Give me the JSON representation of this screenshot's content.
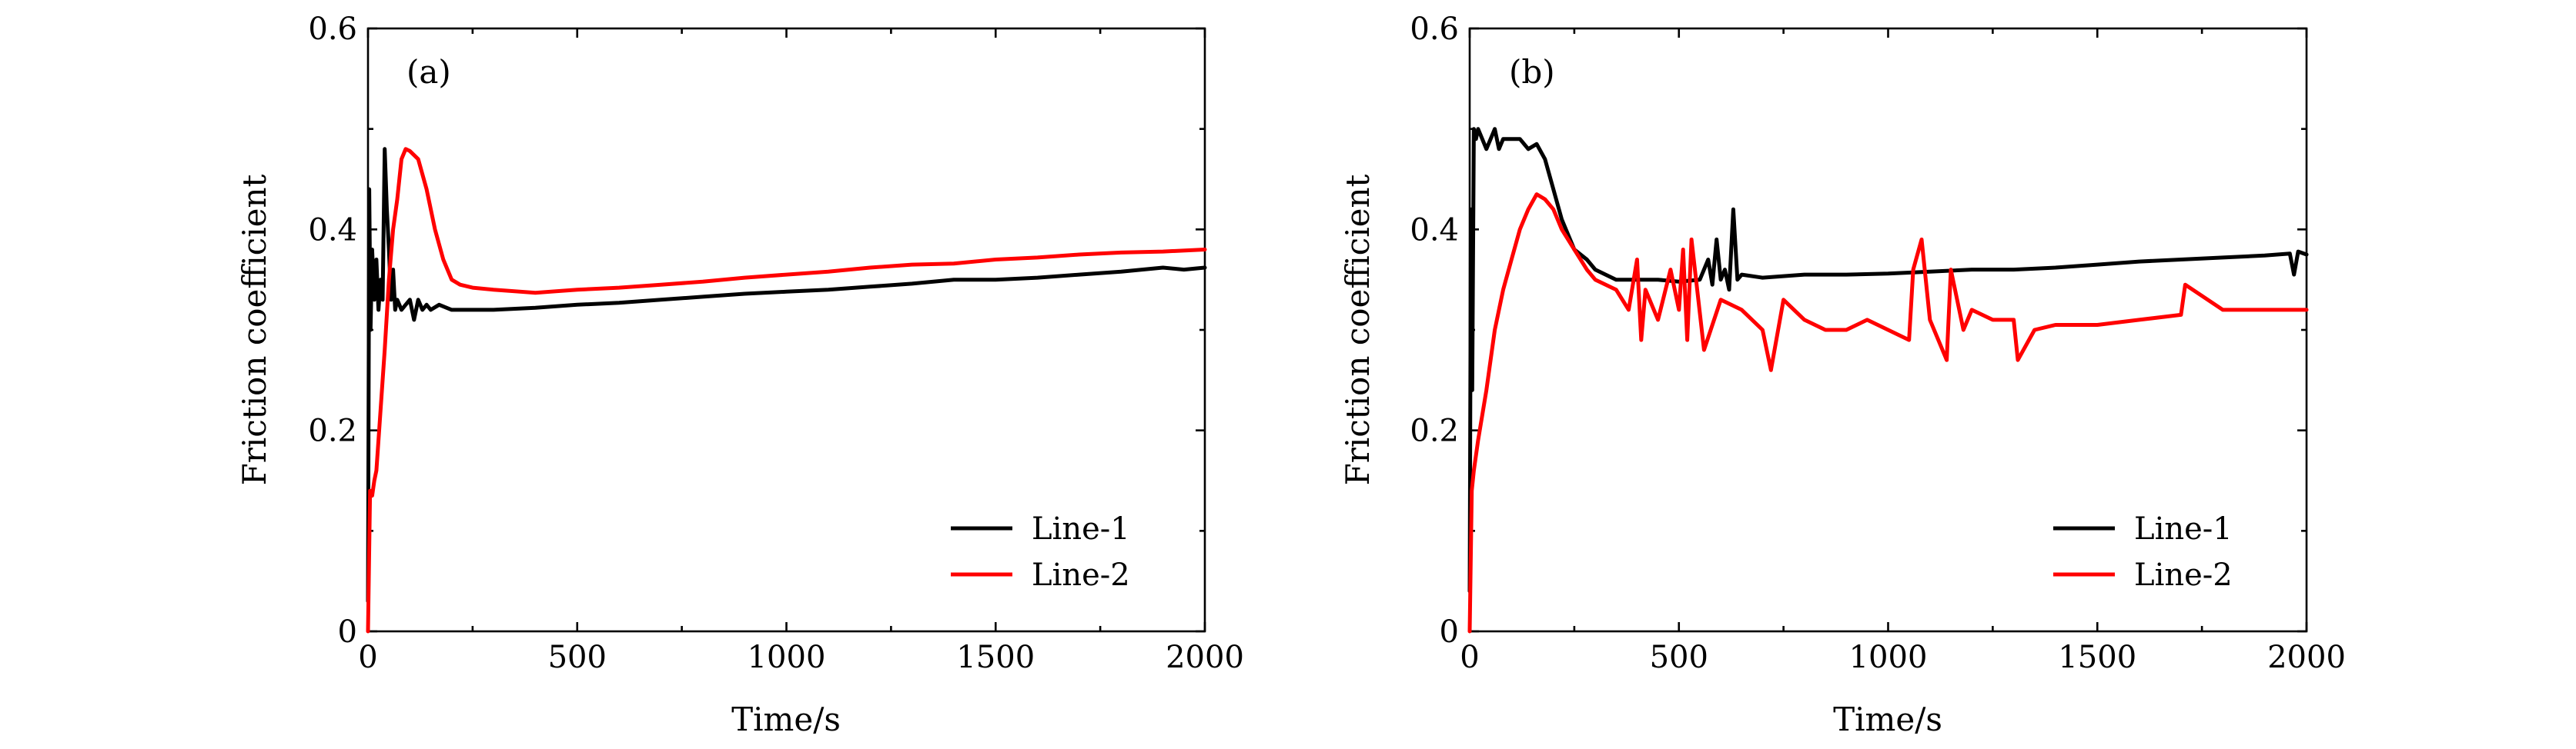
{
  "chart_data": [
    {
      "type": "line",
      "panel_label": "(a)",
      "xlabel": "Time/s",
      "ylabel": "Friction coefficient",
      "xlim": [
        0,
        2000
      ],
      "ylim": [
        0,
        0.6
      ],
      "xticks": [
        0,
        500,
        1000,
        1500,
        2000
      ],
      "yticks": [
        0,
        0.2,
        0.4,
        0.6
      ],
      "xtick_labels": [
        "0",
        "500",
        "1000",
        "1500",
        "2000"
      ],
      "ytick_labels": [
        "0",
        "0.2",
        "0.4",
        "0.6"
      ],
      "legend_position": "bottom-right",
      "grid": false,
      "series": [
        {
          "name": "Line-1",
          "color": "#000000",
          "x": [
            0,
            3,
            6,
            10,
            15,
            20,
            25,
            30,
            35,
            40,
            45,
            50,
            55,
            60,
            65,
            70,
            80,
            90,
            100,
            110,
            120,
            130,
            140,
            150,
            170,
            200,
            250,
            300,
            400,
            500,
            600,
            700,
            800,
            900,
            1000,
            1100,
            1200,
            1300,
            1400,
            1500,
            1600,
            1700,
            1800,
            1900,
            1950,
            2000
          ],
          "y": [
            0.03,
            0.44,
            0.3,
            0.38,
            0.33,
            0.37,
            0.32,
            0.35,
            0.33,
            0.48,
            0.42,
            0.38,
            0.33,
            0.36,
            0.32,
            0.33,
            0.32,
            0.325,
            0.33,
            0.31,
            0.33,
            0.32,
            0.325,
            0.32,
            0.325,
            0.32,
            0.32,
            0.32,
            0.322,
            0.325,
            0.327,
            0.33,
            0.333,
            0.336,
            0.338,
            0.34,
            0.343,
            0.346,
            0.35,
            0.35,
            0.352,
            0.355,
            0.358,
            0.362,
            0.36,
            0.362
          ]
        },
        {
          "name": "Line-2",
          "color": "#ff0000",
          "x": [
            0,
            5,
            10,
            15,
            20,
            30,
            40,
            50,
            60,
            70,
            80,
            90,
            100,
            120,
            140,
            160,
            180,
            200,
            220,
            250,
            300,
            400,
            500,
            600,
            700,
            800,
            900,
            1000,
            1100,
            1200,
            1300,
            1400,
            1500,
            1600,
            1700,
            1800,
            1900,
            2000
          ],
          "y": [
            0.0,
            0.14,
            0.135,
            0.15,
            0.16,
            0.22,
            0.28,
            0.35,
            0.4,
            0.43,
            0.47,
            0.48,
            0.478,
            0.47,
            0.44,
            0.4,
            0.37,
            0.35,
            0.345,
            0.342,
            0.34,
            0.337,
            0.34,
            0.342,
            0.345,
            0.348,
            0.352,
            0.355,
            0.358,
            0.362,
            0.365,
            0.366,
            0.37,
            0.372,
            0.375,
            0.377,
            0.378,
            0.38
          ]
        }
      ]
    },
    {
      "type": "line",
      "panel_label": "(b)",
      "xlabel": "Time/s",
      "ylabel": "Friction coefficient",
      "xlim": [
        0,
        2000
      ],
      "ylim": [
        0,
        0.6
      ],
      "xticks": [
        0,
        500,
        1000,
        1500,
        2000
      ],
      "yticks": [
        0,
        0.2,
        0.4,
        0.6
      ],
      "xtick_labels": [
        "0",
        "500",
        "1000",
        "1500",
        "2000"
      ],
      "ytick_labels": [
        "0",
        "0.2",
        "0.4",
        "0.6"
      ],
      "legend_position": "bottom-right",
      "grid": false,
      "series": [
        {
          "name": "Line-1",
          "color": "#000000",
          "x": [
            0,
            3,
            6,
            10,
            15,
            20,
            30,
            40,
            50,
            60,
            70,
            80,
            100,
            120,
            140,
            160,
            180,
            200,
            220,
            250,
            280,
            300,
            350,
            400,
            450,
            500,
            550,
            570,
            580,
            590,
            600,
            610,
            620,
            630,
            640,
            650,
            700,
            800,
            900,
            1000,
            1100,
            1200,
            1300,
            1400,
            1500,
            1600,
            1700,
            1800,
            1900,
            1960,
            1970,
            1980,
            2000
          ],
          "y": [
            0.04,
            0.42,
            0.24,
            0.5,
            0.49,
            0.5,
            0.49,
            0.48,
            0.49,
            0.5,
            0.48,
            0.49,
            0.49,
            0.49,
            0.48,
            0.485,
            0.47,
            0.44,
            0.41,
            0.38,
            0.37,
            0.36,
            0.35,
            0.35,
            0.35,
            0.348,
            0.35,
            0.37,
            0.345,
            0.39,
            0.35,
            0.36,
            0.34,
            0.42,
            0.35,
            0.355,
            0.352,
            0.355,
            0.355,
            0.356,
            0.358,
            0.36,
            0.36,
            0.362,
            0.365,
            0.368,
            0.37,
            0.372,
            0.374,
            0.376,
            0.355,
            0.378,
            0.375
          ]
        },
        {
          "name": "Line-2",
          "color": "#ff0000",
          "x": [
            0,
            5,
            10,
            20,
            40,
            60,
            80,
            100,
            120,
            140,
            160,
            180,
            200,
            220,
            250,
            280,
            300,
            350,
            380,
            400,
            410,
            420,
            450,
            480,
            500,
            510,
            520,
            530,
            560,
            600,
            650,
            700,
            720,
            750,
            800,
            850,
            900,
            950,
            1000,
            1050,
            1060,
            1080,
            1100,
            1140,
            1150,
            1180,
            1200,
            1250,
            1300,
            1310,
            1350,
            1400,
            1500,
            1600,
            1700,
            1710,
            1800,
            1900,
            2000
          ],
          "y": [
            0.0,
            0.14,
            0.16,
            0.19,
            0.24,
            0.3,
            0.34,
            0.37,
            0.4,
            0.42,
            0.435,
            0.43,
            0.42,
            0.4,
            0.38,
            0.36,
            0.35,
            0.34,
            0.32,
            0.37,
            0.29,
            0.34,
            0.31,
            0.36,
            0.32,
            0.38,
            0.29,
            0.39,
            0.28,
            0.33,
            0.32,
            0.3,
            0.26,
            0.33,
            0.31,
            0.3,
            0.3,
            0.31,
            0.3,
            0.29,
            0.36,
            0.39,
            0.31,
            0.27,
            0.36,
            0.3,
            0.32,
            0.31,
            0.31,
            0.27,
            0.3,
            0.305,
            0.305,
            0.31,
            0.315,
            0.345,
            0.32,
            0.32,
            0.32
          ]
        }
      ]
    }
  ]
}
